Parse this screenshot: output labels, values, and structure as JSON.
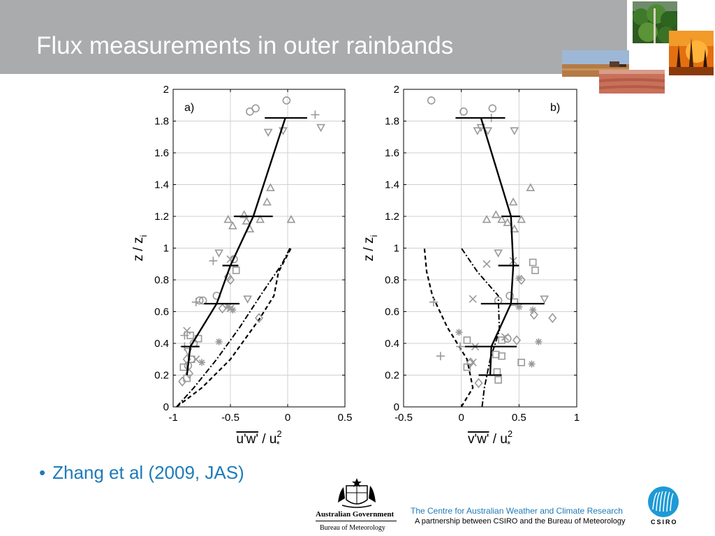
{
  "slide": {
    "title": "Flux measurements in outer rainbands",
    "bullet": "Zhang et al (2009, JAS)",
    "footer_line1": "The Centre for Australian Weather and Climate Research",
    "footer_line2": "A partnership between CSIRO and the Bureau of Meteorology",
    "gov_name": "Australian Government",
    "gov_sub": "Bureau of Meteorology",
    "csiro_word": "CSIRO",
    "photos": [
      "forest-photo",
      "bushfire-photo",
      "farm-photo",
      "field-photo"
    ]
  },
  "colors": {
    "title_bar": "#a9abad",
    "accent": "#1e7bb8",
    "markers": "#999999",
    "lines": "#000000"
  },
  "chart_data": [
    {
      "type": "scatter",
      "panel_label": "a)",
      "xlabel": "u'w' / u*²",
      "ylabel": "z / zi",
      "xlim": [
        -1,
        0.5
      ],
      "ylim": [
        0,
        2
      ],
      "xticks": [
        "-1",
        "-0.5",
        "0",
        "0.5"
      ],
      "yticks": [
        "0",
        "0.2",
        "0.4",
        "0.6",
        "0.8",
        "1",
        "1.2",
        "1.4",
        "1.6",
        "1.8",
        "2"
      ],
      "grid": true,
      "mean_profile": [
        {
          "x": -0.88,
          "y": 0.2
        },
        {
          "x": -0.85,
          "y": 0.38
        },
        {
          "x": -0.62,
          "y": 0.65
        },
        {
          "x": -0.5,
          "y": 0.89
        },
        {
          "x": -0.3,
          "y": 1.2
        },
        {
          "x": -0.02,
          "y": 1.82
        }
      ],
      "error_bars": [
        {
          "y": 0.38,
          "xmin": -0.93,
          "xmax": -0.77
        },
        {
          "y": 0.65,
          "xmin": -0.73,
          "xmax": -0.42
        },
        {
          "y": 0.89,
          "xmin": -0.57,
          "xmax": -0.43
        },
        {
          "y": 1.2,
          "xmin": -0.47,
          "xmax": -0.13
        },
        {
          "y": 1.82,
          "xmin": -0.2,
          "xmax": 0.17
        }
      ],
      "dashdot_curve": [
        {
          "x": -0.97,
          "y": 0
        },
        {
          "x": -0.82,
          "y": 0.12
        },
        {
          "x": -0.62,
          "y": 0.3
        },
        {
          "x": -0.42,
          "y": 0.5
        },
        {
          "x": -0.22,
          "y": 0.72
        },
        {
          "x": -0.05,
          "y": 0.9
        },
        {
          "x": 0.02,
          "y": 1.0
        }
      ],
      "dashed_curve": [
        {
          "x": -0.97,
          "y": 0
        },
        {
          "x": -0.75,
          "y": 0.12
        },
        {
          "x": -0.5,
          "y": 0.3
        },
        {
          "x": -0.25,
          "y": 0.55
        },
        {
          "x": -0.12,
          "y": 0.7
        },
        {
          "x": -0.08,
          "y": 0.85
        },
        {
          "x": 0.03,
          "y": 1.0
        }
      ],
      "points": [
        {
          "x": -0.33,
          "y": 1.86,
          "m": "circle"
        },
        {
          "x": -0.28,
          "y": 1.88,
          "m": "circle"
        },
        {
          "x": -0.01,
          "y": 1.93,
          "m": "circle"
        },
        {
          "x": 0.24,
          "y": 1.84,
          "m": "plus"
        },
        {
          "x": 0.29,
          "y": 1.76,
          "m": "tri_down"
        },
        {
          "x": -0.17,
          "y": 1.73,
          "m": "tri_down"
        },
        {
          "x": -0.04,
          "y": 1.74,
          "m": "tri_down"
        },
        {
          "x": -0.15,
          "y": 1.38,
          "m": "tri_up"
        },
        {
          "x": -0.18,
          "y": 1.29,
          "m": "tri_up"
        },
        {
          "x": -0.52,
          "y": 1.18,
          "m": "tri_up"
        },
        {
          "x": -0.48,
          "y": 1.14,
          "m": "tri_up"
        },
        {
          "x": -0.38,
          "y": 1.21,
          "m": "tri_up"
        },
        {
          "x": -0.36,
          "y": 1.17,
          "m": "tri_up"
        },
        {
          "x": -0.33,
          "y": 1.12,
          "m": "tri_up"
        },
        {
          "x": -0.24,
          "y": 1.18,
          "m": "tri_up"
        },
        {
          "x": 0.03,
          "y": 1.18,
          "m": "tri_up"
        },
        {
          "x": -0.6,
          "y": 0.97,
          "m": "tri_down"
        },
        {
          "x": -0.65,
          "y": 0.92,
          "m": "plus"
        },
        {
          "x": -0.5,
          "y": 0.93,
          "m": "x"
        },
        {
          "x": -0.47,
          "y": 0.93,
          "m": "circle"
        },
        {
          "x": -0.45,
          "y": 0.86,
          "m": "square"
        },
        {
          "x": -0.52,
          "y": 0.82,
          "m": "diamond"
        },
        {
          "x": -0.5,
          "y": 0.8,
          "m": "diamond"
        },
        {
          "x": -0.8,
          "y": 0.66,
          "m": "plus"
        },
        {
          "x": -0.77,
          "y": 0.67,
          "m": "circle"
        },
        {
          "x": -0.74,
          "y": 0.67,
          "m": "circle"
        },
        {
          "x": -0.62,
          "y": 0.7,
          "m": "circle"
        },
        {
          "x": -0.57,
          "y": 0.62,
          "m": "diamond"
        },
        {
          "x": -0.52,
          "y": 0.63,
          "m": "asterisk"
        },
        {
          "x": -0.5,
          "y": 0.62,
          "m": "x"
        },
        {
          "x": -0.48,
          "y": 0.61,
          "m": "asterisk"
        },
        {
          "x": -0.35,
          "y": 0.68,
          "m": "tri_down"
        },
        {
          "x": -0.25,
          "y": 0.56,
          "m": "diamond"
        },
        {
          "x": -0.88,
          "y": 0.48,
          "m": "x"
        },
        {
          "x": -0.9,
          "y": 0.45,
          "m": "plus"
        },
        {
          "x": -0.85,
          "y": 0.45,
          "m": "square"
        },
        {
          "x": -0.78,
          "y": 0.43,
          "m": "square"
        },
        {
          "x": -0.82,
          "y": 0.4,
          "m": "circle"
        },
        {
          "x": -0.9,
          "y": 0.38,
          "m": "plus"
        },
        {
          "x": -0.88,
          "y": 0.3,
          "m": "diamond"
        },
        {
          "x": -0.84,
          "y": 0.3,
          "m": "square"
        },
        {
          "x": -0.8,
          "y": 0.3,
          "m": "x"
        },
        {
          "x": -0.75,
          "y": 0.28,
          "m": "asterisk"
        },
        {
          "x": -0.87,
          "y": 0.26,
          "m": "circle"
        },
        {
          "x": -0.91,
          "y": 0.25,
          "m": "square"
        },
        {
          "x": -0.86,
          "y": 0.21,
          "m": "diamond"
        },
        {
          "x": -0.88,
          "y": 0.18,
          "m": "square"
        },
        {
          "x": -0.92,
          "y": 0.16,
          "m": "diamond"
        },
        {
          "x": -0.6,
          "y": 0.41,
          "m": "asterisk"
        },
        {
          "x": -0.87,
          "y": 0.35,
          "m": "tri_down"
        }
      ]
    },
    {
      "type": "scatter",
      "panel_label": "b)",
      "xlabel": "v'w' / u*²",
      "ylabel": "z / zi",
      "xlim": [
        -0.5,
        1
      ],
      "ylim": [
        0,
        2
      ],
      "xticks": [
        "-0.5",
        "0",
        "0.5",
        "1"
      ],
      "yticks": [
        "0",
        "0.2",
        "0.4",
        "0.6",
        "0.8",
        "1",
        "1.2",
        "1.4",
        "1.6",
        "1.8",
        "2"
      ],
      "grid": true,
      "mean_profile": [
        {
          "x": 0.25,
          "y": 0.2
        },
        {
          "x": 0.26,
          "y": 0.38
        },
        {
          "x": 0.43,
          "y": 0.65
        },
        {
          "x": 0.45,
          "y": 0.89
        },
        {
          "x": 0.43,
          "y": 1.2
        },
        {
          "x": 0.17,
          "y": 1.82
        }
      ],
      "error_bars": [
        {
          "y": 0.2,
          "xmin": 0.15,
          "xmax": 0.35
        },
        {
          "y": 0.38,
          "xmin": 0.03,
          "xmax": 0.48
        },
        {
          "y": 0.65,
          "xmin": 0.17,
          "xmax": 0.72
        },
        {
          "y": 0.89,
          "xmin": 0.32,
          "xmax": 0.5
        },
        {
          "y": 1.2,
          "xmin": 0.35,
          "xmax": 0.51
        },
        {
          "y": 1.82,
          "xmin": -0.05,
          "xmax": 0.38
        }
      ],
      "dashdot_curve": [
        {
          "x": 0.18,
          "y": 0
        },
        {
          "x": 0.2,
          "y": 0.12
        },
        {
          "x": 0.25,
          "y": 0.3
        },
        {
          "x": 0.33,
          "y": 0.48
        },
        {
          "x": 0.32,
          "y": 0.7
        },
        {
          "x": 0.14,
          "y": 0.85
        },
        {
          "x": 0.0,
          "y": 1.0
        }
      ],
      "dashed_curve": [
        {
          "x": 0.0,
          "y": 0
        },
        {
          "x": 0.1,
          "y": 0.12
        },
        {
          "x": 0.05,
          "y": 0.3
        },
        {
          "x": -0.12,
          "y": 0.5
        },
        {
          "x": -0.25,
          "y": 0.7
        },
        {
          "x": -0.3,
          "y": 0.85
        },
        {
          "x": -0.32,
          "y": 1.0
        }
      ],
      "points": [
        {
          "x": -0.26,
          "y": 1.93,
          "m": "circle"
        },
        {
          "x": 0.02,
          "y": 1.86,
          "m": "circle"
        },
        {
          "x": 0.27,
          "y": 1.88,
          "m": "circle"
        },
        {
          "x": 0.26,
          "y": 1.82,
          "m": "plus"
        },
        {
          "x": 0.14,
          "y": 1.74,
          "m": "tri_down"
        },
        {
          "x": 0.17,
          "y": 1.76,
          "m": "tri_down"
        },
        {
          "x": 0.23,
          "y": 1.74,
          "m": "tri_down"
        },
        {
          "x": 0.46,
          "y": 1.74,
          "m": "tri_down"
        },
        {
          "x": 0.6,
          "y": 1.38,
          "m": "tri_up"
        },
        {
          "x": 0.45,
          "y": 1.29,
          "m": "tri_up"
        },
        {
          "x": 0.22,
          "y": 1.18,
          "m": "tri_up"
        },
        {
          "x": 0.3,
          "y": 1.21,
          "m": "tri_up"
        },
        {
          "x": 0.35,
          "y": 1.18,
          "m": "tri_up"
        },
        {
          "x": 0.4,
          "y": 1.16,
          "m": "tri_up"
        },
        {
          "x": 0.46,
          "y": 1.12,
          "m": "tri_up"
        },
        {
          "x": 0.52,
          "y": 1.18,
          "m": "tri_up"
        },
        {
          "x": 0.32,
          "y": 0.97,
          "m": "tri_down"
        },
        {
          "x": 0.22,
          "y": 0.9,
          "m": "x"
        },
        {
          "x": 0.45,
          "y": 0.92,
          "m": "x"
        },
        {
          "x": 0.62,
          "y": 0.91,
          "m": "square"
        },
        {
          "x": 0.64,
          "y": 0.86,
          "m": "square"
        },
        {
          "x": 0.5,
          "y": 0.81,
          "m": "asterisk"
        },
        {
          "x": 0.52,
          "y": 0.8,
          "m": "diamond"
        },
        {
          "x": -0.24,
          "y": 0.66,
          "m": "plus"
        },
        {
          "x": 0.1,
          "y": 0.68,
          "m": "x"
        },
        {
          "x": 0.32,
          "y": 0.67,
          "m": "circle"
        },
        {
          "x": 0.42,
          "y": 0.7,
          "m": "circle"
        },
        {
          "x": 0.46,
          "y": 0.66,
          "m": "square"
        },
        {
          "x": 0.5,
          "y": 0.63,
          "m": "asterisk"
        },
        {
          "x": 0.62,
          "y": 0.61,
          "m": "asterisk"
        },
        {
          "x": 0.63,
          "y": 0.58,
          "m": "diamond"
        },
        {
          "x": 0.72,
          "y": 0.68,
          "m": "tri_down"
        },
        {
          "x": 0.79,
          "y": 0.56,
          "m": "diamond"
        },
        {
          "x": -0.02,
          "y": 0.47,
          "m": "asterisk"
        },
        {
          "x": -0.01,
          "y": 0.38,
          "m": "plus"
        },
        {
          "x": 0.05,
          "y": 0.42,
          "m": "square"
        },
        {
          "x": 0.12,
          "y": 0.38,
          "m": "x"
        },
        {
          "x": 0.35,
          "y": 0.42,
          "m": "square"
        },
        {
          "x": 0.38,
          "y": 0.44,
          "m": "x"
        },
        {
          "x": 0.4,
          "y": 0.43,
          "m": "circle"
        },
        {
          "x": 0.48,
          "y": 0.42,
          "m": "diamond"
        },
        {
          "x": 0.67,
          "y": 0.41,
          "m": "asterisk"
        },
        {
          "x": -0.18,
          "y": 0.32,
          "m": "plus"
        },
        {
          "x": 0.05,
          "y": 0.25,
          "m": "square"
        },
        {
          "x": 0.1,
          "y": 0.28,
          "m": "x"
        },
        {
          "x": 0.3,
          "y": 0.33,
          "m": "square"
        },
        {
          "x": 0.35,
          "y": 0.32,
          "m": "square"
        },
        {
          "x": 0.52,
          "y": 0.28,
          "m": "square"
        },
        {
          "x": 0.61,
          "y": 0.27,
          "m": "asterisk"
        },
        {
          "x": 0.31,
          "y": 0.22,
          "m": "square"
        },
        {
          "x": 0.32,
          "y": 0.17,
          "m": "square"
        },
        {
          "x": 0.08,
          "y": 0.28,
          "m": "diamond"
        },
        {
          "x": 0.15,
          "y": 0.15,
          "m": "diamond"
        }
      ]
    }
  ]
}
